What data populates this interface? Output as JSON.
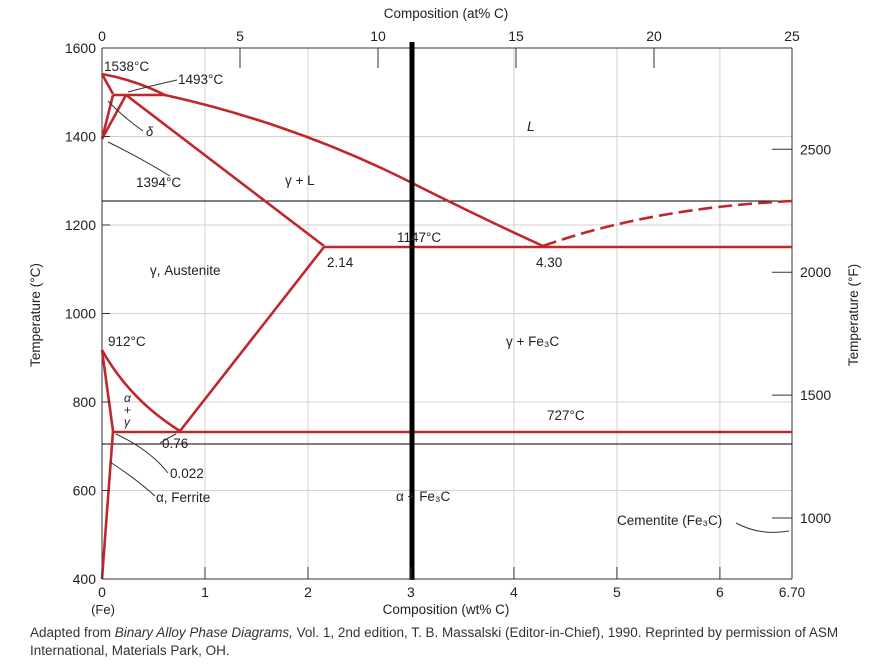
{
  "diagram": {
    "top_axis": {
      "label": "Composition (at% C)",
      "ticks": [
        0,
        5,
        10,
        15,
        20,
        25
      ]
    },
    "bottom_axis": {
      "label": "Composition (wt% C)",
      "ticks": [
        0,
        1,
        2,
        3,
        4,
        5,
        6
      ],
      "end_label": "6.70",
      "fe_label": "(Fe)"
    },
    "left_axis": {
      "label": "Temperature (°C)",
      "ticks": [
        400,
        600,
        800,
        1000,
        1200,
        1400,
        1600
      ]
    },
    "right_axis": {
      "label": "Temperature (°F)",
      "ticks": [
        1000,
        1500,
        2000,
        2500
      ]
    },
    "phase_labels": {
      "liquid": "L",
      "gamma_liquid": "γ + L",
      "gamma_austenite": "γ, Austenite",
      "gamma_fe3c": "γ + Fe₃C",
      "alpha_fe3c": "α + Fe₃C",
      "alpha_ferrite": "α, Ferrite",
      "delta": "δ",
      "alpha_gamma": [
        "α",
        "+",
        "γ"
      ],
      "cementite": "Cementite (Fe₃C)"
    },
    "point_labels": {
      "t1538": "1538°C",
      "t1493": "1493°C",
      "t1394": "1394°C",
      "t1147": "1147°C",
      "t912": "912°C",
      "t727": "727°C",
      "c214": "2.14",
      "c430": "4.30",
      "c076": "0.76",
      "c0022": "0.022"
    },
    "line_color": "#c0272d",
    "marker_line_wt": 3.0
  },
  "caption": {
    "prefix": "Adapted from ",
    "title": "Binary Alloy Phase Diagrams,",
    "suffix": " Vol. 1, 2nd edition, T. B. Massalski (Editor-in-Chief), 1990. Reprinted by permission of ASM International, Materials Park, OH."
  }
}
